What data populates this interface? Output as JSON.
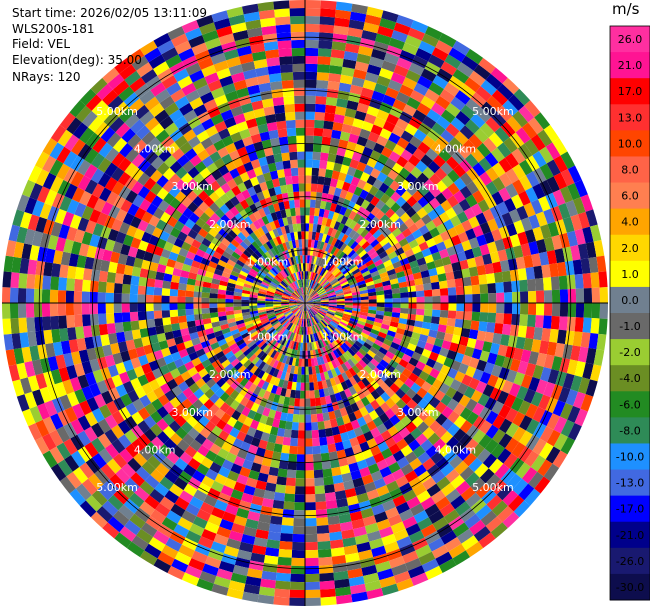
{
  "info": {
    "start_time": "Start time: 2026/02/05 13:11:09",
    "instrument": "WLS200s-181",
    "field": "Field: VEL",
    "elevation": "Elevation(deg): 35.00",
    "nrays": "NRays: 120"
  },
  "chart_data": {
    "type": "heatmap",
    "projection": "polar-ppi",
    "field": "VEL",
    "n_rays": 120,
    "ring_labels": [
      "1.00km",
      "2.00km",
      "3.00km",
      "4.00km",
      "5.00km"
    ],
    "max_range_km": 5.7,
    "colorbar": {
      "unit": "m/s",
      "ticks": [
        "26.0",
        "21.0",
        "17.0",
        "13.0",
        "10.0",
        "8.0",
        "6.0",
        "4.0",
        "2.0",
        "1.0",
        "0.0",
        "-1.0",
        "-2.0",
        "-4.0",
        "-6.0",
        "-8.0",
        "-10.0",
        "-13.0",
        "-17.0",
        "-21.0",
        "-26.0",
        "-30.0"
      ],
      "colors": [
        "#ff2fa0",
        "#ff1493",
        "#ff0000",
        "#ff3030",
        "#ff4500",
        "#ff6347",
        "#ff7f50",
        "#ffa500",
        "#ffd700",
        "#ffff00",
        "#708090",
        "#696969",
        "#9acd32",
        "#6b8e23",
        "#228b22",
        "#2e8b57",
        "#1e90ff",
        "#4169e1",
        "#0000ff",
        "#00008b",
        "#191970",
        "#0d0d4d"
      ]
    }
  }
}
